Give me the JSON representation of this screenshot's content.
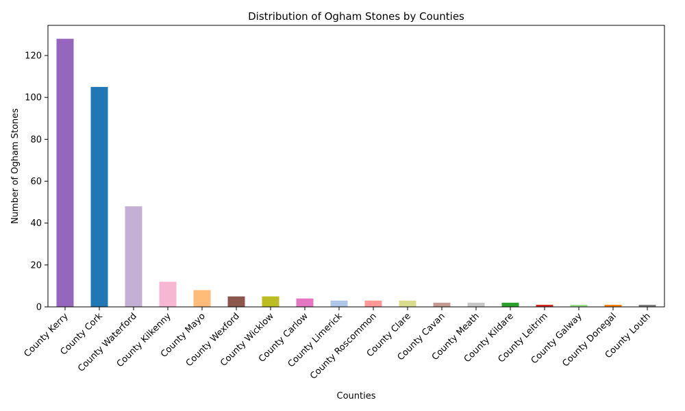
{
  "chart_data": {
    "type": "bar",
    "title": "Distribution of Ogham Stones by Counties",
    "xlabel": "Counties",
    "ylabel": "Number of Ogham Stones",
    "ylim": [
      0,
      134.4
    ],
    "yticks": [
      0,
      20,
      40,
      60,
      80,
      100,
      120
    ],
    "grid": false,
    "legend": "none",
    "categories": [
      "County Kerry",
      "County Cork",
      "County Waterford",
      "County Kilkenny",
      "County Mayo",
      "County Wexford",
      "County Wicklow",
      "County Carlow",
      "County Limerick",
      "County Roscommon",
      "County Clare",
      "County Cavan",
      "County Meath",
      "County Kildare",
      "County Leitrim",
      "County Galway",
      "County Donegal",
      "County Louth"
    ],
    "values": [
      128,
      105,
      48,
      12,
      8,
      5,
      5,
      4,
      3,
      3,
      3,
      2,
      2,
      2,
      1,
      1,
      1,
      1
    ],
    "colors": [
      "#9467bd",
      "#1f77b4",
      "#c5b0d5",
      "#f7b6d2",
      "#ffbb78",
      "#8c564b",
      "#bcbd22",
      "#e377c2",
      "#aec7e8",
      "#ff9896",
      "#dbdb8d",
      "#c49c94",
      "#c7c7c7",
      "#2ca02c",
      "#d62728",
      "#98df8a",
      "#ff7f0e",
      "#7f7f7f"
    ]
  }
}
